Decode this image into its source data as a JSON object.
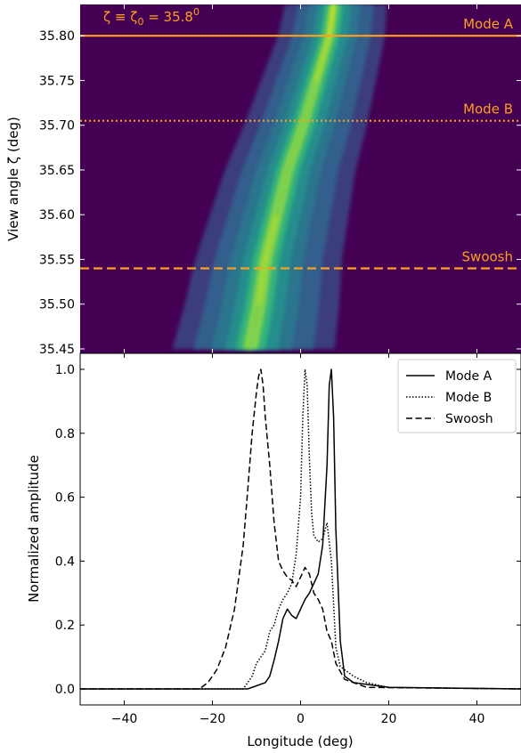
{
  "chart_data": [
    {
      "type": "heatmap",
      "ylabel": "View angle ζ (deg)",
      "ylim": [
        35.445,
        35.835
      ],
      "xlim": [
        -50,
        50
      ],
      "y_ticks": [
        35.45,
        35.5,
        35.55,
        35.6,
        35.65,
        35.7,
        35.75,
        35.8
      ],
      "y_tick_labels": [
        "35.45",
        "35.50",
        "35.55",
        "35.60",
        "35.65",
        "35.70",
        "35.75",
        "35.80"
      ],
      "background_color": "#440154",
      "annotation": {
        "parts": [
          "ζ ≡ ζ",
          "0",
          " = 35.8",
          "0"
        ]
      },
      "reference_lines": [
        {
          "name": "Mode A",
          "y": 35.8,
          "style": "solid",
          "color": "#ff9f1c"
        },
        {
          "name": "Mode B",
          "y": 35.705,
          "style": "dotted",
          "color": "#ff9f1c"
        },
        {
          "name": "Swoosh",
          "y": 35.54,
          "style": "dashed",
          "color": "#ff9f1c"
        }
      ],
      "ridge": {
        "zeta": [
          35.45,
          35.5,
          35.55,
          35.6,
          35.65,
          35.7,
          35.75,
          35.8,
          35.835
        ],
        "longitude": [
          -11.5,
          -9.5,
          -8.0,
          -5.5,
          -3.0,
          0.5,
          3.5,
          6.5,
          7.5
        ],
        "peak_intensity": [
          0.55,
          0.85,
          0.9,
          0.85,
          0.7,
          0.75,
          0.8,
          0.95,
          0.9
        ]
      }
    },
    {
      "type": "line",
      "xlabel": "Longitude (deg)",
      "ylabel": "Normalized amplitude",
      "xlim": [
        -50,
        50
      ],
      "ylim": [
        -0.05,
        1.05
      ],
      "x_ticks": [
        -40,
        -20,
        0,
        20,
        40
      ],
      "x_tick_labels": [
        "−40",
        "−20",
        "0",
        "20",
        "40"
      ],
      "y_ticks": [
        0.0,
        0.2,
        0.4,
        0.6,
        0.8,
        1.0
      ],
      "y_tick_labels": [
        "0.0",
        "0.2",
        "0.4",
        "0.6",
        "0.8",
        "1.0"
      ],
      "legend": "top-right",
      "series": [
        {
          "name": "Mode A",
          "style": "solid",
          "x": [
            -50,
            -12,
            -10,
            -8,
            -7,
            -6,
            -5,
            -4,
            -3,
            -2,
            -1,
            0,
            1,
            2,
            3,
            4,
            5,
            6,
            6.5,
            7,
            7.5,
            8,
            9,
            10,
            12,
            20,
            50
          ],
          "y": [
            0,
            0,
            0.01,
            0.02,
            0.04,
            0.09,
            0.15,
            0.22,
            0.25,
            0.23,
            0.22,
            0.25,
            0.28,
            0.3,
            0.33,
            0.36,
            0.45,
            0.7,
            0.95,
            1.0,
            0.85,
            0.5,
            0.15,
            0.04,
            0.02,
            0.005,
            0
          ]
        },
        {
          "name": "Mode B",
          "style": "dotted",
          "x": [
            -50,
            -13,
            -11,
            -10,
            -9,
            -8,
            -7,
            -6,
            -5,
            -4,
            -3,
            -2,
            -1,
            0,
            0.5,
            1,
            1.5,
            2,
            2.5,
            3,
            4,
            5,
            6,
            7,
            8,
            9,
            10,
            12,
            15,
            20,
            50
          ],
          "y": [
            0,
            0,
            0.04,
            0.08,
            0.1,
            0.12,
            0.18,
            0.2,
            0.25,
            0.28,
            0.3,
            0.33,
            0.42,
            0.6,
            0.85,
            1.0,
            0.95,
            0.72,
            0.55,
            0.48,
            0.46,
            0.47,
            0.52,
            0.4,
            0.13,
            0.07,
            0.06,
            0.04,
            0.02,
            0.005,
            0
          ]
        },
        {
          "name": "Swoosh",
          "style": "dashed",
          "x": [
            -50,
            -23,
            -21,
            -19,
            -17,
            -15,
            -13,
            -12,
            -11,
            -10,
            -9.5,
            -9,
            -8.5,
            -8,
            -7,
            -6,
            -5,
            -4,
            -3,
            -2,
            -1,
            0,
            1,
            2,
            3,
            4,
            5,
            6,
            7,
            8,
            10,
            15,
            50
          ],
          "y": [
            0,
            0,
            0.02,
            0.06,
            0.13,
            0.25,
            0.45,
            0.62,
            0.8,
            0.93,
            0.98,
            1.0,
            0.95,
            0.85,
            0.7,
            0.52,
            0.4,
            0.37,
            0.35,
            0.34,
            0.32,
            0.35,
            0.38,
            0.36,
            0.3,
            0.28,
            0.25,
            0.18,
            0.15,
            0.08,
            0.03,
            0.005,
            0
          ]
        }
      ]
    }
  ]
}
